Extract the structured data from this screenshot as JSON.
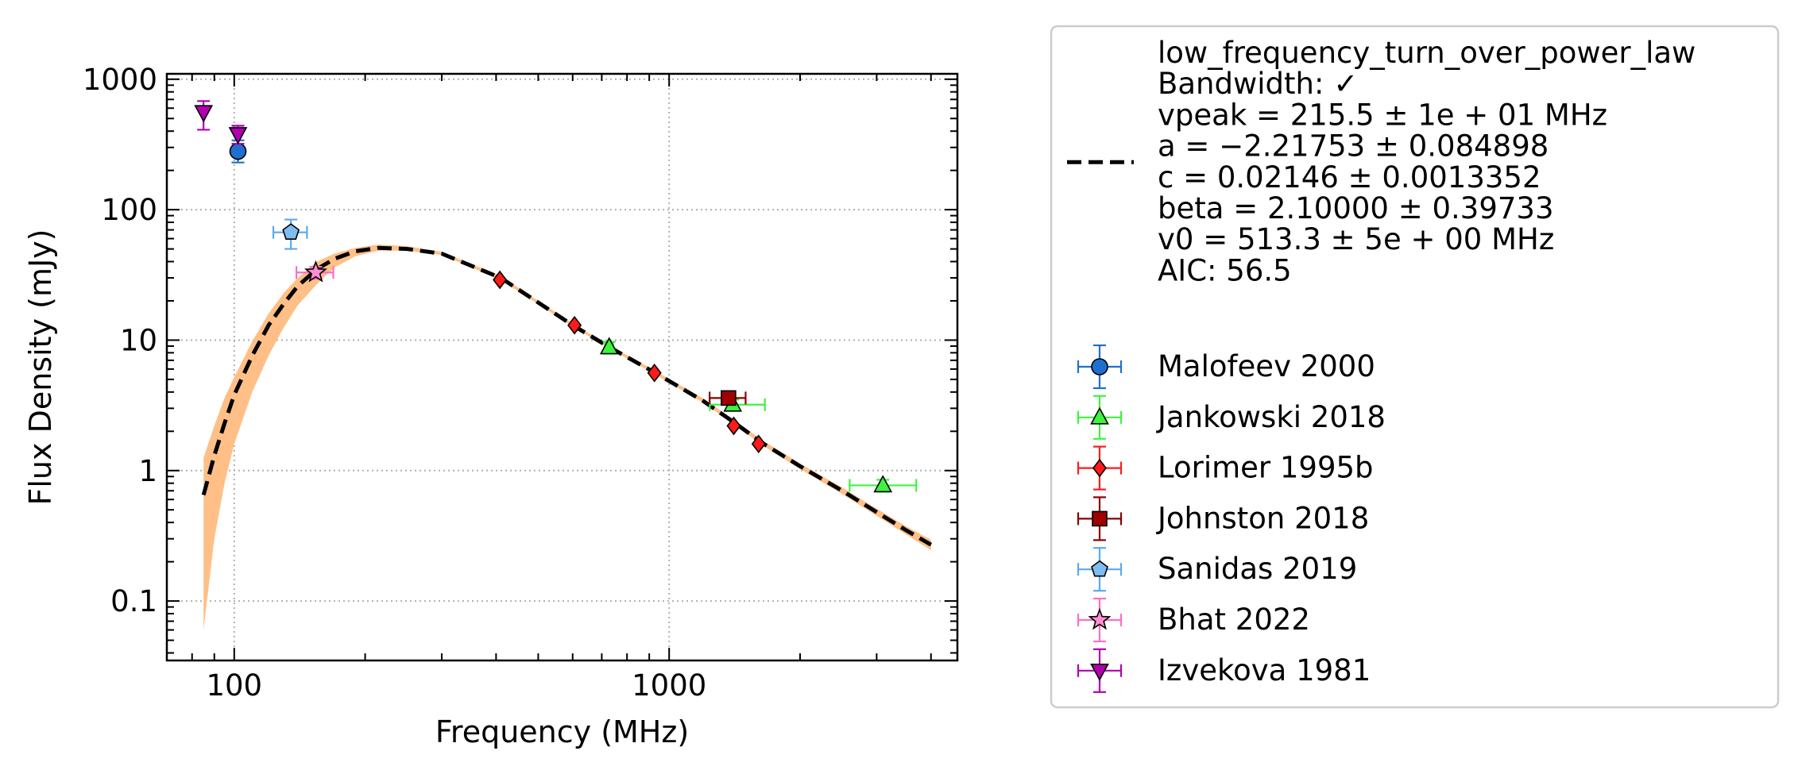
{
  "chart_data": {
    "type": "scatter",
    "xlabel": "Frequency (MHz)",
    "ylabel": "Flux Density (mJy)",
    "xscale": "log",
    "yscale": "log",
    "xlim": [
      70,
      4600
    ],
    "ylim": [
      0.035,
      1100
    ],
    "x_ticks": [
      100,
      1000
    ],
    "x_tick_labels": [
      "100",
      "1000"
    ],
    "y_ticks": [
      0.1,
      1,
      10,
      100,
      1000
    ],
    "y_tick_labels": [
      "0.1",
      "1",
      "10",
      "100",
      "1000"
    ],
    "grid": true,
    "legend_placement": "outside-right",
    "fit": {
      "model": "low_frequency_turn_over_power_law",
      "legend_lines": [
        "low_frequency_turn_over_power_law",
        "Bandwidth: ✓",
        "vpeak = 215.5 ± 1e + 01 MHz",
        "a = −2.21753 ± 0.084898",
        "c = 0.02146 ± 0.0013352",
        "beta = 2.10000 ± 0.39733",
        "v0 = 513.3 ± 5e + 00 MHz",
        "AIC: 56.5"
      ],
      "line_color": "#000000",
      "band_color": "#ffbf86",
      "curve": [
        [
          85,
          0.65
        ],
        [
          90,
          1.3
        ],
        [
          95,
          2.3
        ],
        [
          100,
          3.8
        ],
        [
          110,
          7.6
        ],
        [
          120,
          13
        ],
        [
          130,
          19
        ],
        [
          140,
          26
        ],
        [
          155,
          35
        ],
        [
          170,
          42
        ],
        [
          190,
          48
        ],
        [
          215,
          51
        ],
        [
          250,
          50
        ],
        [
          300,
          46
        ],
        [
          410,
          30
        ],
        [
          600,
          13
        ],
        [
          730,
          8.8
        ],
        [
          930,
          5.6
        ],
        [
          1200,
          3.4
        ],
        [
          1420,
          2.3
        ],
        [
          1640,
          1.62
        ],
        [
          2000,
          1.08
        ],
        [
          2500,
          0.7
        ],
        [
          3000,
          0.48
        ],
        [
          3500,
          0.35
        ],
        [
          4000,
          0.27
        ]
      ],
      "band_lower": [
        [
          85,
          0.06
        ],
        [
          90,
          0.3
        ],
        [
          95,
          0.8
        ],
        [
          100,
          1.6
        ],
        [
          110,
          4.0
        ],
        [
          120,
          7.6
        ],
        [
          130,
          12.5
        ],
        [
          140,
          18.5
        ],
        [
          155,
          27
        ],
        [
          170,
          36
        ],
        [
          190,
          44
        ],
        [
          215,
          48.5
        ],
        [
          250,
          48.5
        ],
        [
          300,
          45
        ],
        [
          410,
          29
        ],
        [
          600,
          12.7
        ],
        [
          730,
          8.6
        ],
        [
          930,
          5.45
        ],
        [
          1200,
          3.3
        ],
        [
          1420,
          2.22
        ],
        [
          1640,
          1.56
        ],
        [
          2000,
          1.03
        ],
        [
          2500,
          0.66
        ],
        [
          3000,
          0.45
        ],
        [
          3500,
          0.325
        ],
        [
          4000,
          0.245
        ]
      ],
      "band_upper": [
        [
          85,
          1.25
        ],
        [
          90,
          2.2
        ],
        [
          95,
          3.6
        ],
        [
          100,
          5.2
        ],
        [
          110,
          9.8
        ],
        [
          120,
          16
        ],
        [
          130,
          23
        ],
        [
          140,
          30
        ],
        [
          155,
          40
        ],
        [
          170,
          46
        ],
        [
          190,
          51
        ],
        [
          215,
          54
        ],
        [
          250,
          52.5
        ],
        [
          300,
          47.5
        ],
        [
          410,
          31
        ],
        [
          600,
          13.4
        ],
        [
          730,
          9.1
        ],
        [
          930,
          5.8
        ],
        [
          1200,
          3.55
        ],
        [
          1420,
          2.4
        ],
        [
          1640,
          1.7
        ],
        [
          2000,
          1.13
        ],
        [
          2500,
          0.74
        ],
        [
          3000,
          0.51
        ],
        [
          3500,
          0.375
        ],
        [
          4000,
          0.295
        ]
      ]
    },
    "series": [
      {
        "name": "Malofeev 2000",
        "marker": "circle",
        "color": "#1f6fd1",
        "ecolor": "#1f6fd1",
        "points": [
          {
            "x": 102,
            "y": 280,
            "yerr": [
              50,
              60
            ]
          }
        ]
      },
      {
        "name": "Jankowski 2018",
        "marker": "triangle-up",
        "color": "#3ef23e",
        "ecolor": "#3ef23e",
        "points": [
          {
            "x": 728,
            "y": 8.8,
            "yerr": [
              0.9,
              0.9
            ],
            "xerr": [
              15,
              15
            ]
          },
          {
            "x": 1400,
            "y": 3.2,
            "yerr": [
              0.3,
              0.3
            ],
            "xerr": [
              160,
              260
            ]
          },
          {
            "x": 3100,
            "y": 0.77,
            "yerr": [
              0.08,
              0.08
            ],
            "xerr": [
              500,
              600
            ]
          }
        ]
      },
      {
        "name": "Lorimer 1995b",
        "marker": "diamond",
        "color": "#ff1a1a",
        "ecolor": "#ff1a1a",
        "points": [
          {
            "x": 408,
            "y": 29
          },
          {
            "x": 606,
            "y": 13
          },
          {
            "x": 925,
            "y": 5.6
          },
          {
            "x": 1408,
            "y": 2.2
          },
          {
            "x": 1606,
            "y": 1.6
          }
        ]
      },
      {
        "name": "Johnston 2018",
        "marker": "square",
        "color": "#a00000",
        "ecolor": "#8b0000",
        "points": [
          {
            "x": 1369,
            "y": 3.6,
            "yerr": [
              0.35,
              0.35
            ],
            "xerr": [
              130,
              130
            ]
          }
        ]
      },
      {
        "name": "Sanidas 2019",
        "marker": "pentagon",
        "color": "#7fbdf0",
        "ecolor": "#5aaaf0",
        "points": [
          {
            "x": 135,
            "y": 67,
            "yerr": [
              17,
              17
            ],
            "xerr": [
              12,
              12
            ]
          }
        ]
      },
      {
        "name": "Bhat 2022",
        "marker": "star",
        "color": "#ff8fd0",
        "ecolor": "#ff6ec4",
        "points": [
          {
            "x": 154,
            "y": 33,
            "yerr": [
              3.5,
              3.5
            ],
            "xerr": [
              15,
              15
            ]
          }
        ]
      },
      {
        "name": "Izvekova 1981",
        "marker": "triangle-down",
        "color": "#b000b0",
        "ecolor": "#b000b0",
        "points": [
          {
            "x": 85,
            "y": 560,
            "yerr": [
              150,
              120
            ]
          },
          {
            "x": 102,
            "y": 380,
            "yerr": [
              60,
              60
            ]
          }
        ]
      }
    ]
  }
}
